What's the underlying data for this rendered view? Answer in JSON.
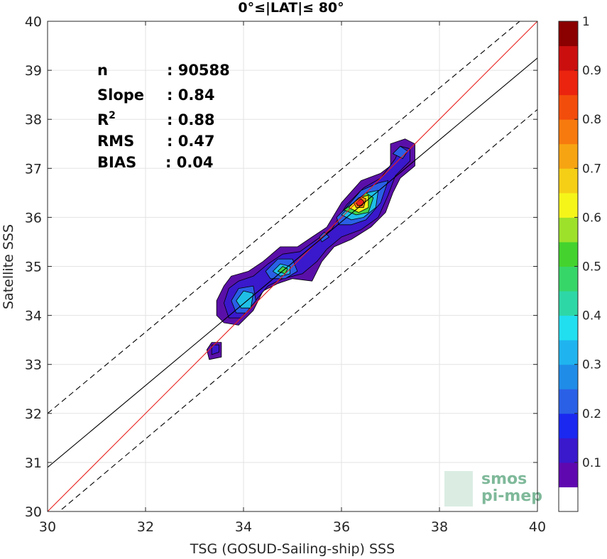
{
  "chart_data": {
    "type": "heatmap",
    "title": "0°≤|LAT|≤ 80°",
    "xlabel": "TSG (GOSUD-Sailing-ship) SSS",
    "ylabel": "Satellite SSS",
    "xlim": [
      30,
      40
    ],
    "ylim": [
      30,
      40
    ],
    "xticks": [
      30,
      32,
      34,
      36,
      38,
      40
    ],
    "yticks": [
      30,
      31,
      32,
      33,
      34,
      35,
      36,
      37,
      38,
      39,
      40
    ],
    "grid": true,
    "stats": [
      {
        "label": "n",
        "value": ": 90588"
      },
      {
        "label": "Slope",
        "value": ": 0.84"
      },
      {
        "label": "R",
        "sup": "2",
        "value": ": 0.88"
      },
      {
        "label": "RMS",
        "value": ": 0.47"
      },
      {
        "label": "BIAS",
        "value": ": 0.04"
      }
    ],
    "lines": [
      {
        "name": "identity",
        "color": "#e8221e",
        "style": "solid",
        "points": [
          [
            30,
            30
          ],
          [
            40,
            40
          ]
        ]
      },
      {
        "name": "fit",
        "color": "#000000",
        "style": "solid",
        "points": [
          [
            30,
            30.9
          ],
          [
            40,
            39.25
          ]
        ]
      },
      {
        "name": "upper",
        "color": "#000000",
        "style": "dashed",
        "points": [
          [
            30,
            32.0
          ],
          [
            40,
            40.3
          ]
        ]
      },
      {
        "name": "lower",
        "color": "#000000",
        "style": "dashed",
        "points": [
          [
            30,
            29.8
          ],
          [
            40,
            38.2
          ]
        ]
      }
    ],
    "density_contours": [
      {
        "level": 0.05,
        "color": "#5a10a8",
        "polygons": [
          [
            [
              33.3,
              33.1
            ],
            [
              33.55,
              33.15
            ],
            [
              33.55,
              33.45
            ],
            [
              33.35,
              33.45
            ],
            [
              33.25,
              33.3
            ]
          ],
          [
            [
              33.45,
              34.3
            ],
            [
              33.6,
              34.6
            ],
            [
              33.75,
              34.8
            ],
            [
              34.1,
              34.9
            ],
            [
              34.4,
              35.1
            ],
            [
              34.75,
              35.4
            ],
            [
              35.1,
              35.4
            ],
            [
              35.4,
              35.6
            ],
            [
              35.7,
              35.8
            ],
            [
              36.0,
              36.3
            ],
            [
              36.4,
              36.75
            ],
            [
              36.8,
              36.9
            ],
            [
              37.0,
              37.05
            ],
            [
              37.0,
              37.5
            ],
            [
              37.3,
              37.6
            ],
            [
              37.5,
              37.5
            ],
            [
              37.5,
              37.05
            ],
            [
              37.2,
              36.8
            ],
            [
              37.05,
              36.5
            ],
            [
              36.9,
              36.1
            ],
            [
              36.6,
              35.8
            ],
            [
              36.2,
              35.55
            ],
            [
              35.85,
              35.4
            ],
            [
              35.6,
              35.1
            ],
            [
              35.4,
              34.7
            ],
            [
              35.0,
              34.75
            ],
            [
              34.7,
              34.65
            ],
            [
              34.4,
              34.5
            ],
            [
              34.2,
              34.1
            ],
            [
              33.9,
              33.8
            ],
            [
              33.6,
              33.85
            ],
            [
              33.45,
              34.0
            ]
          ]
        ]
      },
      {
        "level": 0.1,
        "color": "#3a18cc",
        "polygons": [
          [
            [
              33.35,
              33.2
            ],
            [
              33.5,
              33.25
            ],
            [
              33.5,
              33.4
            ],
            [
              33.35,
              33.4
            ]
          ],
          [
            [
              33.6,
              34.25
            ],
            [
              33.7,
              34.55
            ],
            [
              33.9,
              34.7
            ],
            [
              34.2,
              34.8
            ],
            [
              34.5,
              35.05
            ],
            [
              34.8,
              35.25
            ],
            [
              35.15,
              35.3
            ],
            [
              35.5,
              35.55
            ],
            [
              35.8,
              35.75
            ],
            [
              36.1,
              36.25
            ],
            [
              36.45,
              36.6
            ],
            [
              36.8,
              36.8
            ],
            [
              37.1,
              37.2
            ],
            [
              37.2,
              37.45
            ],
            [
              37.4,
              37.4
            ],
            [
              37.4,
              37.15
            ],
            [
              37.1,
              36.85
            ],
            [
              36.95,
              36.45
            ],
            [
              36.75,
              36.0
            ],
            [
              36.4,
              35.75
            ],
            [
              36.0,
              35.6
            ],
            [
              35.7,
              35.35
            ],
            [
              35.5,
              35.1
            ],
            [
              35.2,
              34.85
            ],
            [
              34.8,
              34.75
            ],
            [
              34.5,
              34.6
            ],
            [
              34.2,
              34.25
            ],
            [
              33.95,
              33.95
            ],
            [
              33.7,
              33.95
            ]
          ]
        ]
      },
      {
        "level": 0.2,
        "color": "#2a60e6",
        "polygons": [
          [
            [
              33.75,
              34.3
            ],
            [
              33.9,
              34.55
            ],
            [
              34.2,
              34.6
            ],
            [
              34.25,
              34.3
            ],
            [
              34.05,
              34.05
            ],
            [
              33.85,
              34.05
            ]
          ],
          [
            [
              34.45,
              34.9
            ],
            [
              34.7,
              35.15
            ],
            [
              35.0,
              35.15
            ],
            [
              35.1,
              34.9
            ],
            [
              34.85,
              34.75
            ],
            [
              34.55,
              34.75
            ]
          ],
          [
            [
              35.55,
              35.6
            ],
            [
              35.65,
              35.7
            ],
            [
              35.75,
              35.6
            ],
            [
              35.6,
              35.5
            ]
          ],
          [
            [
              35.9,
              36.0
            ],
            [
              36.1,
              36.2
            ],
            [
              36.4,
              36.55
            ],
            [
              36.75,
              36.7
            ],
            [
              36.95,
              36.75
            ],
            [
              36.8,
              36.3
            ],
            [
              36.5,
              35.95
            ],
            [
              36.2,
              35.85
            ],
            [
              35.95,
              35.85
            ]
          ],
          [
            [
              37.05,
              37.3
            ],
            [
              37.2,
              37.45
            ],
            [
              37.35,
              37.35
            ],
            [
              37.25,
              37.2
            ]
          ]
        ]
      },
      {
        "level": 0.35,
        "color": "#1fbfe6",
        "polygons": [
          [
            [
              33.85,
              34.3
            ],
            [
              34.0,
              34.5
            ],
            [
              34.2,
              34.45
            ],
            [
              34.15,
              34.15
            ],
            [
              33.95,
              34.15
            ]
          ],
          [
            [
              34.6,
              34.9
            ],
            [
              34.75,
              35.05
            ],
            [
              34.95,
              35.0
            ],
            [
              34.95,
              34.85
            ],
            [
              34.75,
              34.8
            ]
          ],
          [
            [
              36.0,
              36.05
            ],
            [
              36.2,
              36.25
            ],
            [
              36.5,
              36.5
            ],
            [
              36.75,
              36.55
            ],
            [
              36.7,
              36.2
            ],
            [
              36.45,
              36.0
            ],
            [
              36.2,
              35.95
            ]
          ]
        ]
      },
      {
        "level": 0.5,
        "color": "#3ed24a",
        "polygons": [
          [
            [
              34.7,
              34.9
            ],
            [
              34.8,
              35.0
            ],
            [
              34.9,
              34.95
            ],
            [
              34.85,
              34.85
            ]
          ],
          [
            [
              36.05,
              36.15
            ],
            [
              36.25,
              36.3
            ],
            [
              36.5,
              36.5
            ],
            [
              36.65,
              36.4
            ],
            [
              36.55,
              36.1
            ],
            [
              36.3,
              36.05
            ]
          ]
        ]
      },
      {
        "level": 0.6,
        "color": "#f5f21a",
        "polygons": [
          [
            [
              36.15,
              36.2
            ],
            [
              36.35,
              36.4
            ],
            [
              36.55,
              36.45
            ],
            [
              36.55,
              36.2
            ],
            [
              36.35,
              36.1
            ]
          ]
        ]
      },
      {
        "level": 0.75,
        "color": "#f7820f",
        "polygons": [
          [
            [
              36.25,
              36.3
            ],
            [
              36.4,
              36.42
            ],
            [
              36.5,
              36.38
            ],
            [
              36.45,
              36.2
            ],
            [
              36.3,
              36.2
            ]
          ]
        ]
      },
      {
        "level": 0.9,
        "color": "#e8221e",
        "polygons": [
          [
            [
              36.3,
              36.3
            ],
            [
              36.4,
              36.38
            ],
            [
              36.46,
              36.32
            ],
            [
              36.42,
              36.24
            ],
            [
              36.33,
              36.24
            ]
          ]
        ]
      }
    ],
    "colorbar": {
      "ticks": [
        "0.1",
        "0.2",
        "0.3",
        "0.4",
        "0.5",
        "0.6",
        "0.7",
        "0.8",
        "0.9",
        "1"
      ],
      "colors": [
        "#ffffff",
        "#6008b0",
        "#3a18cc",
        "#1a28f0",
        "#2a60e6",
        "#1f8ce8",
        "#1fb4ef",
        "#22dff0",
        "#2ed7a6",
        "#37d668",
        "#44d32e",
        "#9ee12a",
        "#f5f51a",
        "#f5cf16",
        "#f7a412",
        "#f77a0e",
        "#f34d0c",
        "#ea240f",
        "#cb0f0f",
        "#8b0000"
      ]
    },
    "logo": [
      "smos",
      "pi-mep"
    ]
  }
}
